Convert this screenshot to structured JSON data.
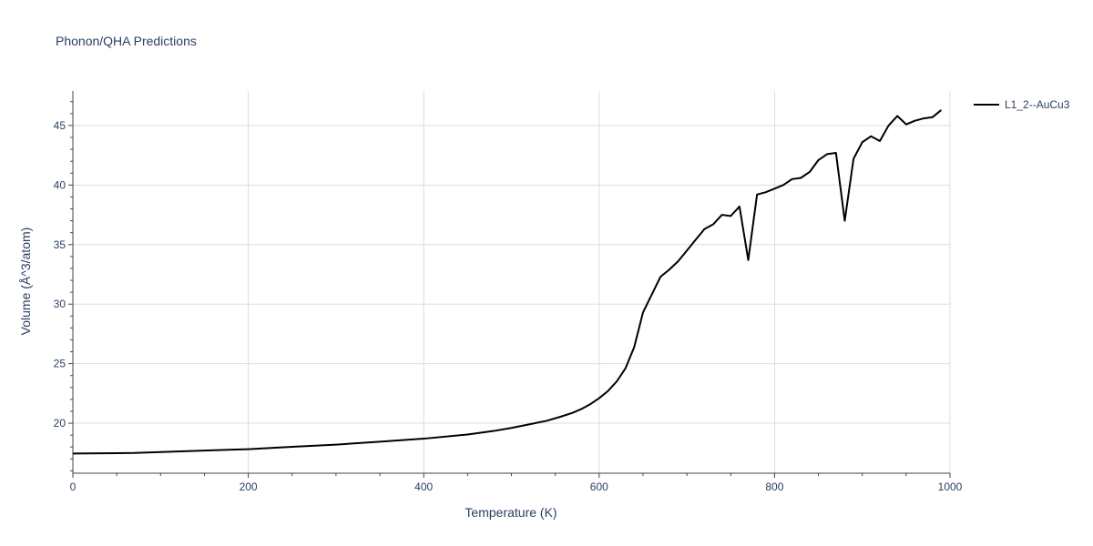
{
  "chart_data": {
    "type": "line",
    "title": "Phonon/QHA Predictions",
    "xlabel": "Temperature (K)",
    "ylabel": "Volume (Å^3/atom)",
    "xlim": [
      0,
      1000
    ],
    "ylim": [
      15.8,
      47.9
    ],
    "xticks": [
      0,
      200,
      400,
      600,
      800,
      1000
    ],
    "yticks": [
      20,
      25,
      30,
      35,
      40,
      45
    ],
    "xtick_labels": [
      "0",
      "200",
      "400",
      "600",
      "800",
      "1000"
    ],
    "ytick_labels": [
      "20",
      "25",
      "30",
      "35",
      "40",
      "45"
    ],
    "grid": true,
    "legend_position": "top-right",
    "series": [
      {
        "name": "L1_2--AuCu3",
        "color": "#000000",
        "x": [
          0,
          70,
          100,
          150,
          200,
          250,
          300,
          350,
          400,
          450,
          480,
          500,
          520,
          540,
          555,
          570,
          580,
          590,
          600,
          610,
          620,
          630,
          640,
          650,
          660,
          670,
          680,
          690,
          700,
          710,
          720,
          730,
          740,
          750,
          760,
          770,
          780,
          790,
          800,
          810,
          820,
          830,
          840,
          850,
          860,
          870,
          880,
          890,
          900,
          910,
          920,
          930,
          940,
          950,
          960,
          970,
          980,
          990
        ],
        "y": [
          17.45,
          17.5,
          17.58,
          17.7,
          17.82,
          18.02,
          18.2,
          18.45,
          18.7,
          19.05,
          19.35,
          19.6,
          19.9,
          20.2,
          20.52,
          20.88,
          21.2,
          21.6,
          22.1,
          22.7,
          23.5,
          24.6,
          26.4,
          29.3,
          30.8,
          32.3,
          32.9,
          33.6,
          34.5,
          35.4,
          36.3,
          36.7,
          37.5,
          37.4,
          38.2,
          33.7,
          39.2,
          39.4,
          39.7,
          40.0,
          40.5,
          40.6,
          41.1,
          42.1,
          42.6,
          42.7,
          37.0,
          42.2,
          43.6,
          44.1,
          43.7,
          45.0,
          45.8,
          45.1,
          45.4,
          45.6,
          45.7,
          46.3
        ]
      }
    ]
  }
}
